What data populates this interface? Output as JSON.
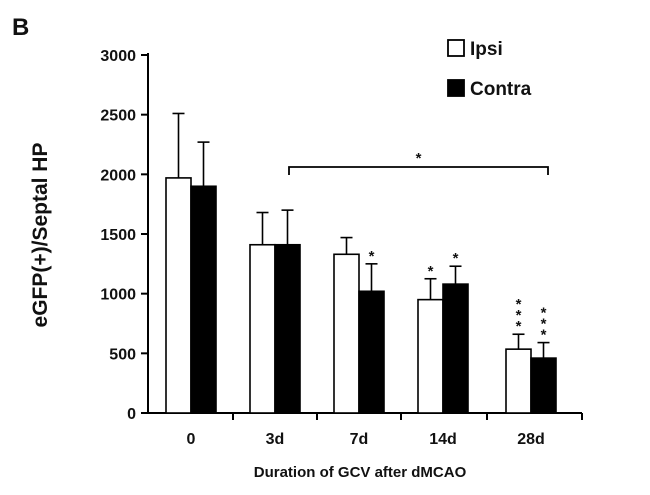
{
  "chart_data": {
    "type": "bar",
    "panel_label": "B",
    "title": "",
    "xlabel": "Duration of GCV after dMCAO",
    "ylabel": "eGFP(+)/Septal HP",
    "categories": [
      "0",
      "3d",
      "7d",
      "14d",
      "28d"
    ],
    "ylim": [
      0,
      3000
    ],
    "yticks": [
      0,
      500,
      1000,
      1500,
      2000,
      2500,
      3000
    ],
    "grid": false,
    "legend_position": "top-right",
    "series": [
      {
        "name": "Ipsi",
        "color": "#ffffff",
        "values": [
          1970,
          1410,
          1330,
          950,
          535
        ],
        "error": [
          540,
          270,
          140,
          175,
          125
        ],
        "significance": [
          "",
          "",
          "",
          "*",
          "***"
        ]
      },
      {
        "name": "Contra",
        "color": "#000000",
        "values": [
          1900,
          1410,
          1020,
          1080,
          460
        ],
        "error": [
          370,
          290,
          230,
          150,
          130
        ],
        "significance": [
          "",
          "",
          "*",
          "*",
          "***"
        ]
      }
    ],
    "bracket": {
      "from_category": "3d",
      "to_category": "28d",
      "label": "*"
    }
  }
}
